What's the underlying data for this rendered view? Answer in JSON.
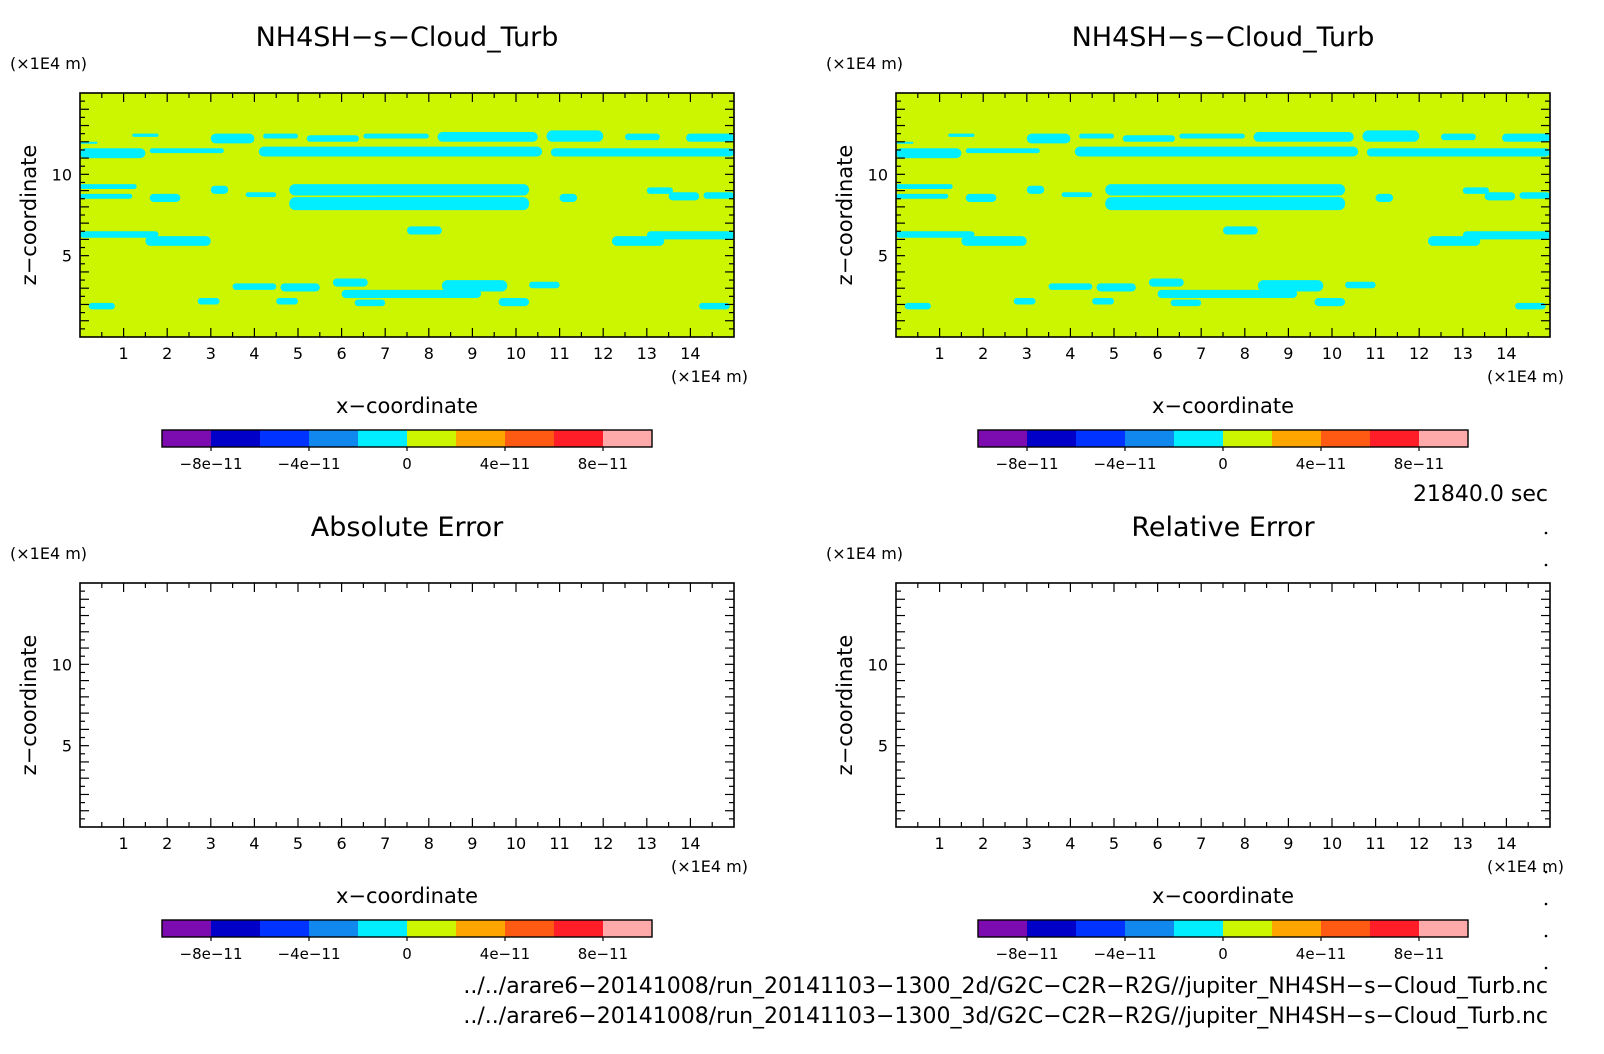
{
  "chart_data": [
    {
      "type": "heatmap",
      "id": "p1",
      "title": "NH4SH−s−Cloud_Turb",
      "xlabel": "x−coordinate",
      "ylabel": "z−coordinate",
      "x_unit": "(×1E4 m)",
      "y_unit": "(×1E4 m)",
      "xlim": [
        0,
        15
      ],
      "ylim": [
        0,
        15
      ],
      "x_ticks": [
        1,
        2,
        3,
        4,
        5,
        6,
        7,
        8,
        9,
        10,
        11,
        12,
        13,
        14
      ],
      "y_ticks": [
        5,
        10
      ],
      "filled": true,
      "field": {
        "background_level": "0 to 2e-11",
        "anomaly_level": "-2e-11 to 0",
        "bands": [
          {
            "x": [
              0.0,
              0.4
            ],
            "z": [
              12.4,
              12.0
            ]
          },
          {
            "x": [
              1.2,
              1.8
            ],
            "z": [
              12.3,
              12.5
            ]
          },
          {
            "x": [
              3.0,
              4.0
            ],
            "z": [
              11.9,
              12.5
            ]
          },
          {
            "x": [
              4.2,
              5.0
            ],
            "z": [
              12.2,
              12.5
            ]
          },
          {
            "x": [
              5.2,
              6.4
            ],
            "z": [
              12.0,
              12.4
            ]
          },
          {
            "x": [
              6.5,
              8.0
            ],
            "z": [
              12.2,
              12.5
            ]
          },
          {
            "x": [
              8.2,
              10.5
            ],
            "z": [
              12.0,
              12.6
            ]
          },
          {
            "x": [
              10.7,
              12.0
            ],
            "z": [
              12.0,
              12.7
            ]
          },
          {
            "x": [
              12.5,
              13.3
            ],
            "z": [
              12.1,
              12.5
            ]
          },
          {
            "x": [
              13.9,
              15.0
            ],
            "z": [
              12.0,
              12.5
            ]
          },
          {
            "x": [
              0.0,
              1.5
            ],
            "z": [
              11.0,
              11.6
            ]
          },
          {
            "x": [
              1.6,
              3.3
            ],
            "z": [
              11.3,
              11.6
            ]
          },
          {
            "x": [
              4.1,
              10.6
            ],
            "z": [
              11.1,
              11.7
            ]
          },
          {
            "x": [
              10.8,
              15.0
            ],
            "z": [
              11.1,
              11.6
            ]
          },
          {
            "x": [
              0.0,
              1.3
            ],
            "z": [
              9.1,
              9.4
            ]
          },
          {
            "x": [
              0.0,
              1.2
            ],
            "z": [
              8.5,
              8.8
            ]
          },
          {
            "x": [
              1.6,
              2.3
            ],
            "z": [
              8.3,
              8.8
            ]
          },
          {
            "x": [
              3.0,
              3.4
            ],
            "z": [
              8.8,
              9.3
            ]
          },
          {
            "x": [
              3.8,
              4.5
            ],
            "z": [
              8.6,
              8.9
            ]
          },
          {
            "x": [
              13.0,
              13.6
            ],
            "z": [
              8.8,
              9.2
            ]
          },
          {
            "x": [
              13.5,
              14.2
            ],
            "z": [
              8.4,
              8.9
            ]
          },
          {
            "x": [
              14.3,
              15.0
            ],
            "z": [
              8.5,
              8.9
            ]
          },
          {
            "x": [
              11.0,
              11.4
            ],
            "z": [
              8.3,
              8.8
            ]
          },
          {
            "x": [
              4.8,
              10.3
            ],
            "z": [
              8.7,
              9.4
            ]
          },
          {
            "x": [
              4.8,
              10.3
            ],
            "z": [
              7.8,
              8.6
            ]
          },
          {
            "x": [
              0.0,
              1.8
            ],
            "z": [
              6.1,
              6.5
            ]
          },
          {
            "x": [
              1.5,
              3.0
            ],
            "z": [
              5.6,
              6.2
            ]
          },
          {
            "x": [
              12.2,
              13.4
            ],
            "z": [
              5.6,
              6.2
            ]
          },
          {
            "x": [
              13.0,
              15.0
            ],
            "z": [
              6.0,
              6.5
            ]
          },
          {
            "x": [
              7.5,
              8.3
            ],
            "z": [
              6.3,
              6.8
            ]
          },
          {
            "x": [
              3.5,
              4.5
            ],
            "z": [
              2.9,
              3.3
            ]
          },
          {
            "x": [
              4.6,
              5.5
            ],
            "z": [
              2.8,
              3.3
            ]
          },
          {
            "x": [
              5.8,
              6.6
            ],
            "z": [
              3.1,
              3.6
            ]
          },
          {
            "x": [
              6.0,
              9.2
            ],
            "z": [
              2.4,
              2.9
            ]
          },
          {
            "x": [
              8.3,
              9.8
            ],
            "z": [
              2.8,
              3.5
            ]
          },
          {
            "x": [
              10.3,
              11.0
            ],
            "z": [
              3.0,
              3.4
            ]
          },
          {
            "x": [
              0.2,
              0.8
            ],
            "z": [
              1.7,
              2.1
            ]
          },
          {
            "x": [
              2.7,
              3.2
            ],
            "z": [
              2.0,
              2.4
            ]
          },
          {
            "x": [
              4.5,
              5.0
            ],
            "z": [
              2.0,
              2.4
            ]
          },
          {
            "x": [
              6.3,
              7.0
            ],
            "z": [
              1.9,
              2.3
            ]
          },
          {
            "x": [
              9.6,
              10.3
            ],
            "z": [
              1.9,
              2.4
            ]
          },
          {
            "x": [
              14.2,
              14.9
            ],
            "z": [
              1.7,
              2.1
            ]
          }
        ]
      }
    },
    {
      "type": "heatmap",
      "id": "p2",
      "title": "NH4SH−s−Cloud_Turb",
      "xlabel": "x−coordinate",
      "ylabel": "z−coordinate",
      "x_unit": "(×1E4 m)",
      "y_unit": "(×1E4 m)",
      "xlim": [
        0,
        15
      ],
      "ylim": [
        0,
        15
      ],
      "x_ticks": [
        1,
        2,
        3,
        4,
        5,
        6,
        7,
        8,
        9,
        10,
        11,
        12,
        13,
        14
      ],
      "y_ticks": [
        5,
        10
      ],
      "filled": true,
      "field_same_as": "p1"
    },
    {
      "type": "heatmap",
      "id": "p3",
      "title": "Absolute Error",
      "xlabel": "x−coordinate",
      "ylabel": "z−coordinate",
      "x_unit": "(×1E4 m)",
      "y_unit": "(×1E4 m)",
      "xlim": [
        0,
        15
      ],
      "ylim": [
        0,
        15
      ],
      "x_ticks": [
        1,
        2,
        3,
        4,
        5,
        6,
        7,
        8,
        9,
        10,
        11,
        12,
        13,
        14
      ],
      "y_ticks": [
        5,
        10
      ],
      "filled": false
    },
    {
      "type": "heatmap",
      "id": "p4",
      "title": "Relative Error",
      "xlabel": "x−coordinate",
      "ylabel": "z−coordinate",
      "x_unit": "(×1E4 m)",
      "y_unit": "(×1E4 m)",
      "xlim": [
        0,
        15
      ],
      "ylim": [
        0,
        15
      ],
      "x_ticks": [
        1,
        2,
        3,
        4,
        5,
        6,
        7,
        8,
        9,
        10,
        11,
        12,
        13,
        14
      ],
      "y_ticks": [
        5,
        10
      ],
      "filled": false
    }
  ],
  "colorbar": {
    "levels": [
      -1e-10,
      -8e-11,
      -6e-11,
      -4e-11,
      -2e-11,
      0,
      2e-11,
      4e-11,
      6e-11,
      8e-11,
      1e-10
    ],
    "colors": [
      "#7d0cb0",
      "#0000c8",
      "#0033ff",
      "#1188ee",
      "#00eeff",
      "#ccf500",
      "#ffa500",
      "#ff5a14",
      "#ff1e28",
      "#ffaaaa"
    ],
    "tick_labels": [
      "−8e−11",
      "−4e−11",
      "0",
      "4e−11",
      "8e−11"
    ],
    "tick_values": [
      -8e-11,
      -4e-11,
      0,
      4e-11,
      8e-11
    ]
  },
  "time_label": "21840.0 sec",
  "file_paths": [
    "../../arare6−20141008/run_20141103−1300_2d/G2C−C2R−R2G//jupiter_NH4SH−s−Cloud_Turb.nc",
    "../../arare6−20141008/run_20141103−1300_3d/G2C−C2R−R2G//jupiter_NH4SH−s−Cloud_Turb.nc"
  ]
}
